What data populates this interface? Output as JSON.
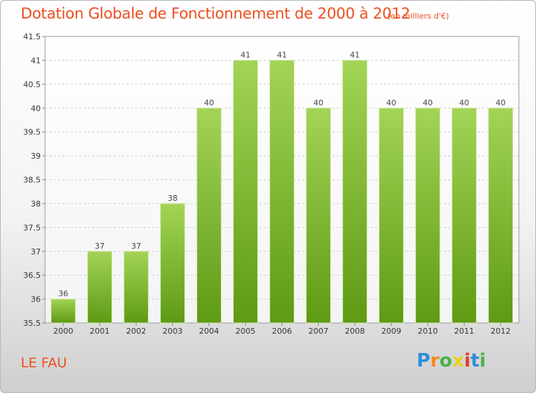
{
  "title": "Dotation Globale de Fonctionnement de 2000 à 2012",
  "unit": "(en milliers d'€)",
  "commune": "LE FAU",
  "logo": {
    "text": "Proxiti",
    "letters": [
      {
        "char": "P",
        "color": "#2f8fd8"
      },
      {
        "char": "r",
        "color": "#f08a1c"
      },
      {
        "char": "o",
        "color": "#49b34a"
      },
      {
        "char": "x",
        "color": "#e8d21d"
      },
      {
        "char": "i",
        "color": "#e33c2c"
      },
      {
        "char": "t",
        "color": "#2f8fd8"
      },
      {
        "char": "i",
        "color": "#49b34a"
      }
    ]
  },
  "colors": {
    "title": "#ee4f1f",
    "bar_top": "#a3d456",
    "bar_bottom": "#5e9a14",
    "grid": "#cccccc"
  },
  "chart_data": {
    "type": "bar",
    "title": "Dotation Globale de Fonctionnement de 2000 à 2012",
    "subtitle": "(en milliers d'€)",
    "xlabel": "",
    "ylabel": "",
    "categories": [
      "2000",
      "2001",
      "2002",
      "2003",
      "2004",
      "2005",
      "2006",
      "2007",
      "2008",
      "2009",
      "2010",
      "2011",
      "2012"
    ],
    "values": [
      36,
      37,
      37,
      38,
      40,
      41,
      41,
      40,
      41,
      40,
      40,
      40,
      40
    ],
    "data_labels": [
      "36",
      "37",
      "37",
      "38",
      "40",
      "41",
      "41",
      "40",
      "41",
      "40",
      "40",
      "40",
      "40"
    ],
    "ylim": [
      35.5,
      41.5
    ],
    "yticks": [
      35.5,
      36,
      36.5,
      37,
      37.5,
      38,
      38.5,
      39,
      39.5,
      40,
      40.5,
      41,
      41.5
    ],
    "ytick_labels": [
      "35.5",
      "36",
      "36.5",
      "37",
      "37.5",
      "38",
      "38.5",
      "39",
      "39.5",
      "40",
      "40.5",
      "41",
      "41.5"
    ],
    "grid": true,
    "legend": "none"
  }
}
